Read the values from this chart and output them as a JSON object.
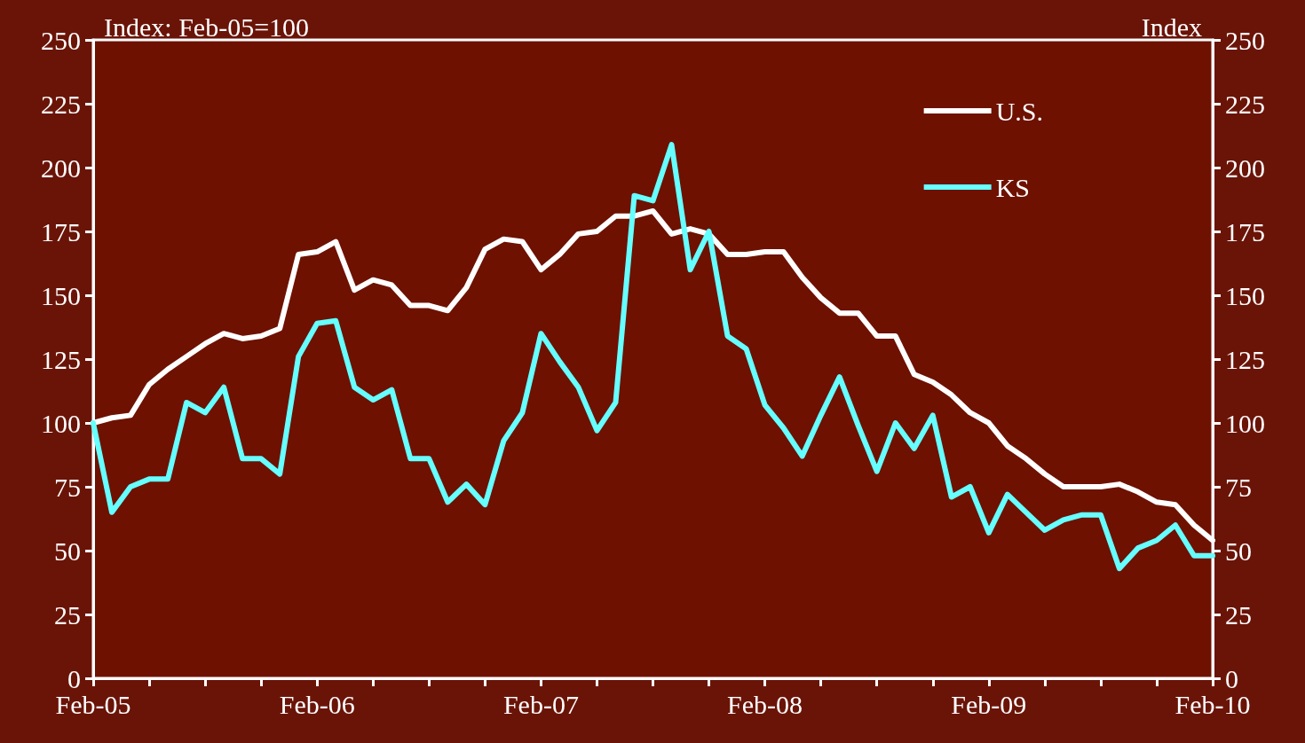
{
  "chart_data": {
    "type": "line",
    "ylabel": "Index: Feb-05=100",
    "y2label": "Index",
    "categories": [
      "Feb-05",
      null,
      null,
      null,
      null,
      null,
      null,
      null,
      null,
      null,
      null,
      null,
      "Feb-06",
      null,
      null,
      null,
      null,
      null,
      null,
      null,
      null,
      null,
      null,
      null,
      "Feb-07",
      null,
      null,
      null,
      null,
      null,
      null,
      null,
      null,
      null,
      null,
      null,
      "Feb-08",
      null,
      null,
      null,
      null,
      null,
      null,
      null,
      null,
      null,
      null,
      null,
      "Feb-09",
      null,
      null,
      null,
      null,
      null,
      null,
      null,
      null,
      null,
      null,
      null,
      "Feb-10"
    ],
    "series": [
      {
        "name": "U.S.",
        "color": "#ffffff",
        "values": [
          100,
          102,
          103,
          115,
          121,
          126,
          131,
          135,
          133,
          134,
          137,
          166,
          167,
          171,
          152,
          156,
          154,
          146,
          146,
          144,
          153,
          168,
          172,
          171,
          160,
          166,
          174,
          175,
          181,
          181,
          183,
          174,
          176,
          174,
          166,
          166,
          167,
          167,
          157,
          149,
          143,
          143,
          134,
          134,
          119,
          116,
          111,
          104,
          100,
          91,
          86,
          80,
          75,
          75,
          75,
          76,
          73,
          69,
          68,
          60,
          54
        ]
      },
      {
        "name": "KS",
        "color": "#66ffff",
        "values": [
          100,
          65,
          75,
          78,
          78,
          108,
          104,
          114,
          86,
          86,
          80,
          126,
          139,
          140,
          114,
          109,
          113,
          86,
          86,
          69,
          76,
          68,
          93,
          104,
          135,
          124,
          114,
          97,
          108,
          189,
          187,
          209,
          160,
          175,
          134,
          129,
          107,
          98,
          87,
          103,
          118,
          99,
          81,
          100,
          90,
          103,
          71,
          75,
          57,
          72,
          65,
          58,
          62,
          64,
          64,
          43,
          51,
          54,
          60,
          48,
          48
        ]
      }
    ],
    "ylim": [
      0,
      250
    ],
    "yticks": [
      0,
      25,
      50,
      75,
      100,
      125,
      150,
      175,
      200,
      225,
      250
    ],
    "y2lim": [
      0,
      250
    ],
    "y2ticks": [
      0,
      25,
      50,
      75,
      100,
      125,
      150,
      175,
      200,
      225,
      250
    ],
    "grid": false,
    "legend": "top right",
    "marker": "none",
    "line_style": "solid"
  }
}
